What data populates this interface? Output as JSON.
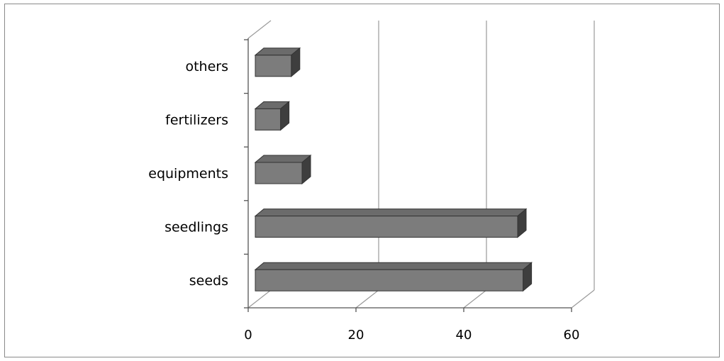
{
  "chart_data": {
    "type": "bar",
    "orientation": "horizontal",
    "style": "3d",
    "categories": [
      "seeds",
      "seedlings",
      "equipments",
      "fertilizers",
      "others"
    ],
    "values": [
      51,
      50,
      10,
      6,
      8
    ],
    "xlim": [
      0,
      60
    ],
    "xticks": [
      "0",
      "20",
      "40",
      "60"
    ],
    "grid": true,
    "legend": "none",
    "colors": {
      "bar_front": "#7c7c7c",
      "bar_top": "#6b6b6b",
      "bar_side": "#3e3e3e",
      "bar_edge": "#333333",
      "grid": "#9a9a9a",
      "axis": "#555555"
    }
  }
}
